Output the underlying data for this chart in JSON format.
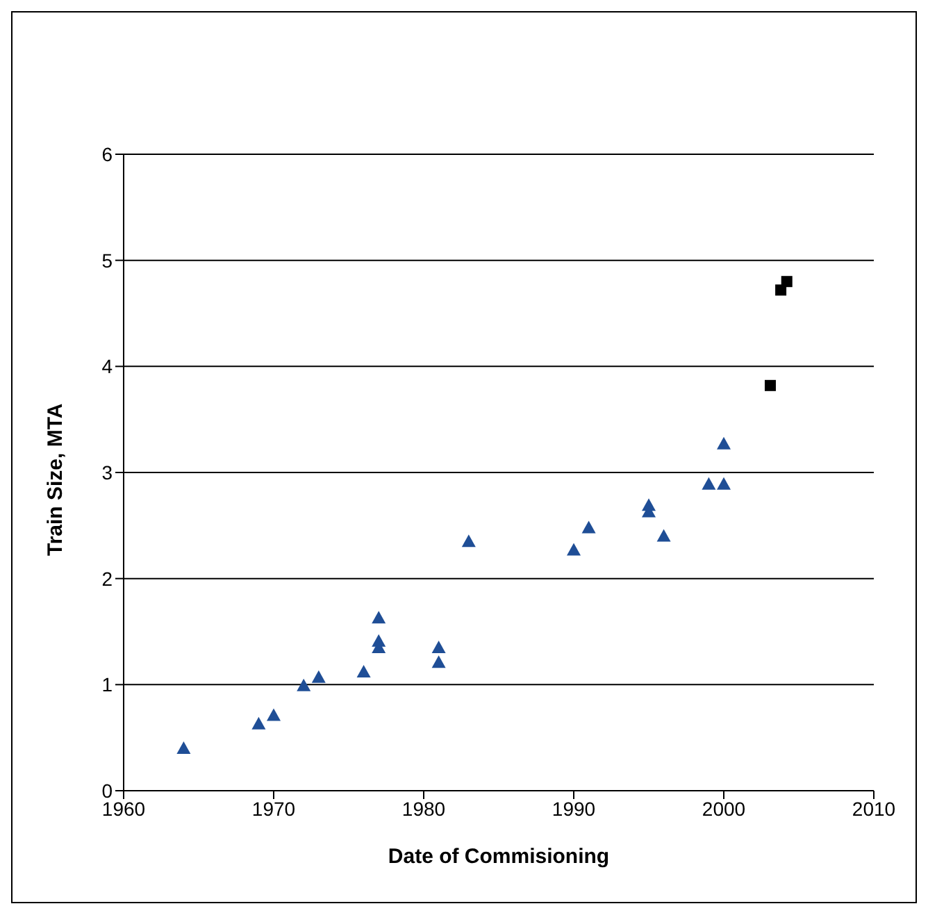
{
  "chart_data": {
    "type": "scatter",
    "xlabel": "Date of Commisioning",
    "ylabel": "Train Size, MTA",
    "xlim": [
      1960,
      2010
    ],
    "xticks": [
      1960,
      1970,
      1980,
      1990,
      2000,
      2010
    ],
    "ylim": [
      0,
      6
    ],
    "yticks": [
      0,
      1,
      2,
      3,
      4,
      5,
      6
    ],
    "grid": "y",
    "legend": false,
    "series": [
      {
        "color": "#1f4e96",
        "marker": "triangle",
        "x": [
          1964,
          1969,
          1970,
          1972,
          1973,
          1976,
          1977,
          1977,
          1977,
          1981,
          1981,
          1983,
          1990,
          1991,
          1995,
          1995,
          1996,
          1999,
          2000,
          2000
        ],
        "values": [
          0.4,
          0.63,
          0.71,
          0.99,
          1.07,
          1.12,
          1.63,
          1.41,
          1.35,
          1.35,
          1.21,
          2.35,
          2.27,
          2.48,
          2.69,
          2.63,
          2.4,
          2.89,
          3.27,
          2.89
        ]
      },
      {
        "color": "#000000",
        "marker": "square",
        "x": [
          2003.1,
          2003.8,
          2004.2
        ],
        "values": [
          3.82,
          4.72,
          4.8
        ]
      }
    ]
  }
}
